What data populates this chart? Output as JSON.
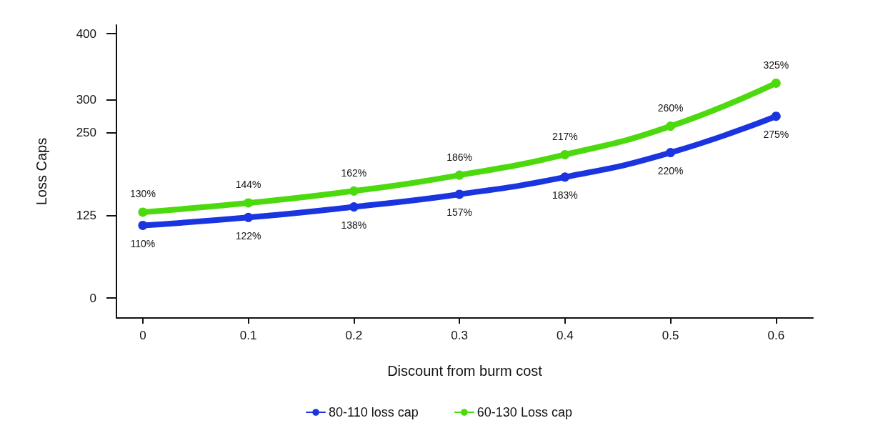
{
  "chart_data": {
    "type": "line",
    "xlabel": "Discount from burm cost",
    "ylabel": "Loss Caps",
    "x": [
      0,
      0.1,
      0.2,
      0.3,
      0.4,
      0.5,
      0.6
    ],
    "xlim": [
      -0.025,
      0.635
    ],
    "xticks": [
      0,
      0.1,
      0.2,
      0.3,
      0.4,
      0.5,
      0.6
    ],
    "ylim": [
      -30,
      413
    ],
    "yticks": [
      0,
      125,
      250,
      300,
      400
    ],
    "series": [
      {
        "name": "80-110 loss cap",
        "color": "#1a35e0",
        "values": [
          110,
          122,
          138,
          157,
          183,
          220,
          275
        ],
        "value_labels": [
          "110%",
          "122%",
          "138%",
          "157%",
          "183%",
          "220%",
          "275%"
        ]
      },
      {
        "name": "60-130 Loss cap",
        "color": "#4cd90e",
        "values": [
          130,
          144,
          162,
          186,
          217,
          260,
          325
        ],
        "value_labels": [
          "130%",
          "144%",
          "162%",
          "186%",
          "217%",
          "260%",
          "325%"
        ]
      }
    ],
    "marker": "circle",
    "line_style": "solid",
    "grid": false,
    "legend": "bottom"
  }
}
